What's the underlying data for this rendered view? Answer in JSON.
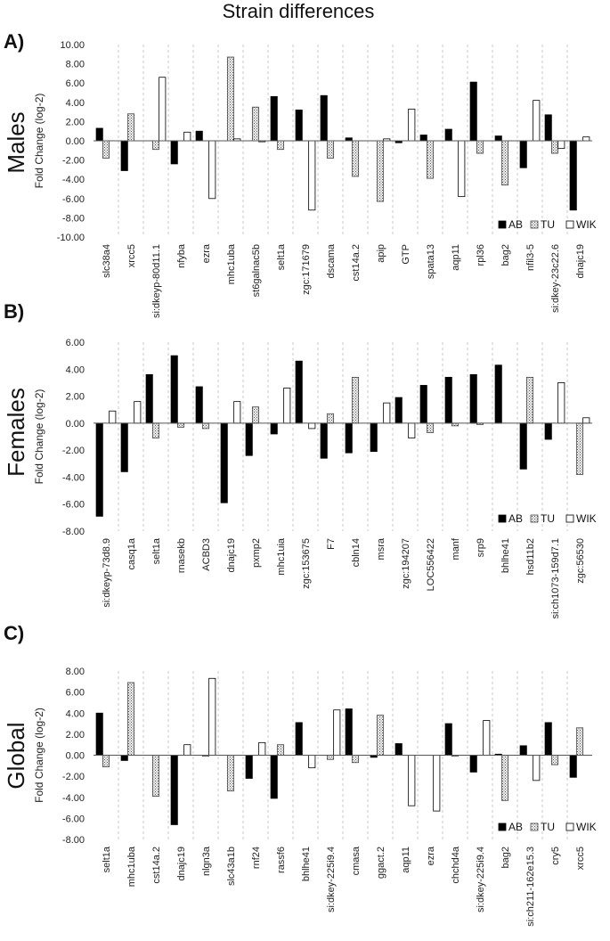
{
  "page": {
    "title": "Strain differences"
  },
  "legend": [
    "AB",
    "TU",
    "WIK"
  ],
  "chart_data": [
    {
      "type": "bar",
      "panel_label": "A)",
      "side_label": "Males",
      "ylabel": "Fold Change (log-2)",
      "ylim": [
        -10,
        10
      ],
      "yticks": [
        10,
        8,
        6,
        4,
        2,
        0,
        -2,
        -4,
        -6,
        -8,
        -10
      ],
      "tick_labels": [
        "10.00",
        "8.00",
        "6.00",
        "4.00",
        "2.00",
        "0.00",
        "-2.00",
        "-4.00",
        "-6.00",
        "-8.00",
        "-10.00"
      ],
      "categories": [
        "slc38a4",
        "xrcc5",
        "si:dkeyp-80d11.1",
        "nfyba",
        "ezra",
        "mhc1uba",
        "st6galnac5b",
        "selt1a",
        "zgc:171679",
        "dscama",
        "cst14a.2",
        "apip",
        "GTP",
        "spata13",
        "aqp11",
        "rpl36",
        "bag2",
        "nfil3-5",
        "si:dkey-23c22.6",
        "dnajc19"
      ],
      "series": [
        {
          "name": "AB",
          "values": [
            1.3,
            -3.1,
            0,
            -2.4,
            1.0,
            0,
            0,
            4.6,
            3.2,
            4.7,
            0.3,
            0,
            -0.2,
            0.6,
            1.2,
            6.1,
            0.5,
            -2.8,
            2.7,
            -7.2
          ]
        },
        {
          "name": "TU",
          "values": [
            -1.8,
            2.8,
            -0.9,
            0,
            0,
            8.7,
            3.5,
            -0.9,
            0,
            -1.8,
            -3.7,
            -6.3,
            0,
            -3.9,
            0,
            -1.3,
            -4.6,
            0,
            -1.3,
            0
          ]
        },
        {
          "name": "WIK",
          "values": [
            0,
            0,
            6.6,
            0.9,
            -6.0,
            0.2,
            -0.1,
            0,
            -7.2,
            0,
            0,
            0.2,
            3.3,
            0,
            -5.8,
            0,
            0,
            4.2,
            -0.8,
            0.4
          ]
        }
      ]
    },
    {
      "type": "bar",
      "panel_label": "B)",
      "side_label": "Females",
      "ylabel": "Fold Change (log-2)",
      "ylim": [
        -8,
        6
      ],
      "yticks": [
        6,
        4,
        2,
        0,
        -2,
        -4,
        -6,
        -8
      ],
      "tick_labels": [
        "6.00",
        "4.00",
        "2.00",
        "0.00",
        "-2.00",
        "-4.00",
        "-6.00",
        "-8.00"
      ],
      "categories": [
        "si:dkeyp-73d8.9",
        "casq1a",
        "selt1a",
        "rnasekb",
        "ACBD3",
        "dnajc19",
        "pxmp2",
        "mhc1uia",
        "zgc:153675",
        "F7",
        "cbln14",
        "msra",
        "zgc:194207",
        "LOC556422",
        "manf",
        "srp9",
        "bhlhe41",
        "hsd11b2",
        "si:ch1073-159d7.1",
        "zgc:56530"
      ],
      "series": [
        {
          "name": "AB",
          "values": [
            -6.9,
            -3.6,
            3.6,
            5.0,
            2.7,
            -5.9,
            -2.4,
            -0.8,
            4.6,
            -2.6,
            -2.2,
            -2.1,
            1.9,
            2.8,
            3.4,
            3.6,
            4.3,
            -3.4,
            -1.2,
            0
          ]
        },
        {
          "name": "TU",
          "values": [
            0,
            0,
            -1.1,
            -0.3,
            -0.4,
            0,
            1.2,
            0,
            0,
            0.7,
            3.4,
            0,
            0,
            -0.7,
            -0.2,
            -0.1,
            0,
            3.4,
            0,
            -3.8
          ]
        },
        {
          "name": "WIK",
          "values": [
            0.9,
            1.6,
            0,
            0,
            0,
            1.6,
            0,
            2.6,
            -0.4,
            0,
            0,
            1.5,
            -1.1,
            0,
            0,
            0,
            0,
            0,
            3.0,
            0.4
          ]
        }
      ]
    },
    {
      "type": "bar",
      "panel_label": "C)",
      "side_label": "Global",
      "ylabel": "Fold Change (log-2)",
      "ylim": [
        -8,
        8
      ],
      "yticks": [
        8,
        6,
        4,
        2,
        0,
        -2,
        -4,
        -6,
        -8
      ],
      "tick_labels": [
        "8.00",
        "6.00",
        "4.00",
        "2.00",
        "0.00",
        "-2.00",
        "-4.00",
        "-6.00",
        "-8.00"
      ],
      "categories": [
        "selt1a",
        "mhc1uba",
        "cst14a.2",
        "dnajc19",
        "nlgn3a",
        "slc43a1b",
        "rnf24",
        "rassf6",
        "bhlhe41",
        "si:dkey-225i9.4",
        "cmasa",
        "ggact.2",
        "aqp11",
        "ezra",
        "chchd4a",
        "si:dkey-225i9.4",
        "bag2",
        "si:ch211-162e15.3",
        "cry5",
        "xrcc5"
      ],
      "series": [
        {
          "name": "AB",
          "values": [
            4.0,
            -0.5,
            0,
            -6.6,
            0,
            0,
            -2.2,
            -4.1,
            3.1,
            0,
            4.4,
            -0.2,
            1.1,
            0,
            3.0,
            -1.6,
            0.1,
            0.9,
            3.1,
            -2.1
          ]
        },
        {
          "name": "TU",
          "values": [
            -1.1,
            6.9,
            -3.9,
            0,
            -0.1,
            -3.4,
            0,
            1.0,
            0,
            -0.4,
            -0.7,
            3.8,
            0,
            0,
            -0.1,
            0,
            -4.3,
            0,
            -0.9,
            2.6
          ]
        },
        {
          "name": "WIK",
          "values": [
            0,
            0,
            0,
            1.0,
            7.3,
            0,
            1.2,
            0,
            -1.2,
            4.3,
            0,
            0,
            -4.8,
            -5.3,
            0,
            3.3,
            0,
            -2.4,
            0,
            0
          ]
        }
      ]
    }
  ]
}
